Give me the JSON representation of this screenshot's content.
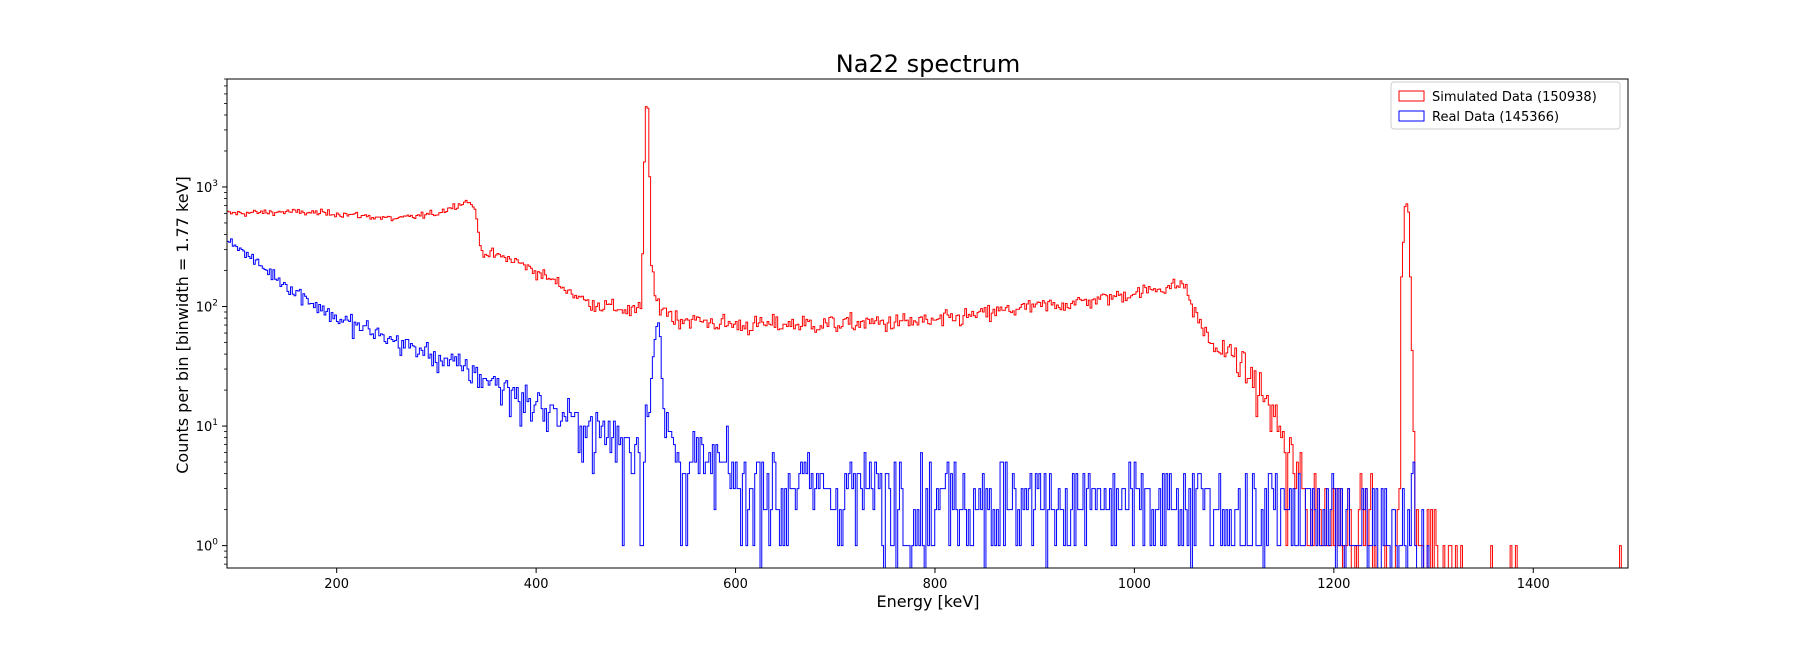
{
  "chart_data": {
    "type": "histogram-step",
    "title": "Na22 spectrum",
    "xlabel": "Energy [keV]",
    "ylabel": "Counts per bin [binwidth = 1.77 keV]",
    "xlim": [
      90,
      1495
    ],
    "ylim": [
      0.65,
      8000
    ],
    "yscale": "log",
    "binwidth_keV": 1.77,
    "x_ticks": [
      200,
      400,
      600,
      800,
      1000,
      1200,
      1400
    ],
    "y_ticks": [
      {
        "value": 1,
        "base": "10",
        "exp": "0"
      },
      {
        "value": 10,
        "base": "10",
        "exp": "1"
      },
      {
        "value": 100,
        "base": "10",
        "exp": "2"
      },
      {
        "value": 1000,
        "base": "10",
        "exp": "3"
      }
    ],
    "grid": false,
    "legend_position": "top-right",
    "series": [
      {
        "name": "Simulated Data (150938)",
        "color": "#ff0000",
        "profile": [
          [
            90,
            600
          ],
          [
            150,
            620
          ],
          [
            200,
            600
          ],
          [
            260,
            540
          ],
          [
            300,
            600
          ],
          [
            330,
            760
          ],
          [
            338,
            700
          ],
          [
            345,
            290
          ],
          [
            380,
            240
          ],
          [
            420,
            160
          ],
          [
            450,
            110
          ],
          [
            500,
            90
          ],
          [
            506,
            100
          ],
          [
            508,
            1000
          ],
          [
            510,
            4800
          ],
          [
            513,
            4500
          ],
          [
            515,
            250
          ],
          [
            520,
            110
          ],
          [
            540,
            80
          ],
          [
            600,
            70
          ],
          [
            700,
            72
          ],
          [
            800,
            75
          ],
          [
            880,
            95
          ],
          [
            950,
            110
          ],
          [
            1000,
            130
          ],
          [
            1050,
            155
          ],
          [
            1060,
            90
          ],
          [
            1080,
            45
          ],
          [
            1100,
            40
          ],
          [
            1110,
            30
          ],
          [
            1130,
            18
          ],
          [
            1150,
            8
          ],
          [
            1160,
            5
          ],
          [
            1170,
            3
          ],
          [
            1200,
            2
          ],
          [
            1260,
            1.3
          ],
          [
            1266,
            2
          ],
          [
            1268,
            200
          ],
          [
            1272,
            760
          ],
          [
            1275,
            650
          ],
          [
            1278,
            80
          ],
          [
            1282,
            2
          ],
          [
            1300,
            0.9
          ],
          [
            1500,
            0.6
          ]
        ],
        "isolated_bins": [
          {
            "energy": 1290,
            "count": 1
          },
          {
            "energy": 1322,
            "count": 1
          },
          {
            "energy": 1358,
            "count": 1
          },
          {
            "energy": 1377,
            "count": 1
          },
          {
            "energy": 1383,
            "count": 1
          },
          {
            "energy": 1487,
            "count": 1
          }
        ]
      },
      {
        "name": "Real Data (145366)",
        "color": "#0000ff",
        "profile": [
          [
            90,
            380
          ],
          [
            110,
            270
          ],
          [
            150,
            150
          ],
          [
            200,
            80
          ],
          [
            250,
            55
          ],
          [
            300,
            38
          ],
          [
            350,
            25
          ],
          [
            400,
            15
          ],
          [
            450,
            10
          ],
          [
            500,
            7
          ],
          [
            508,
            8
          ],
          [
            515,
            20
          ],
          [
            520,
            80
          ],
          [
            524,
            70
          ],
          [
            528,
            12
          ],
          [
            540,
            6
          ],
          [
            600,
            4
          ],
          [
            700,
            3.2
          ],
          [
            800,
            3
          ],
          [
            900,
            2.6
          ],
          [
            1000,
            2.3
          ],
          [
            1100,
            2.1
          ],
          [
            1200,
            1.8
          ],
          [
            1270,
            1.6
          ],
          [
            1278,
            3
          ],
          [
            1285,
            1.2
          ],
          [
            1295,
            0.9
          ],
          [
            1305,
            0.6
          ],
          [
            1500,
            0.6
          ]
        ]
      }
    ]
  }
}
